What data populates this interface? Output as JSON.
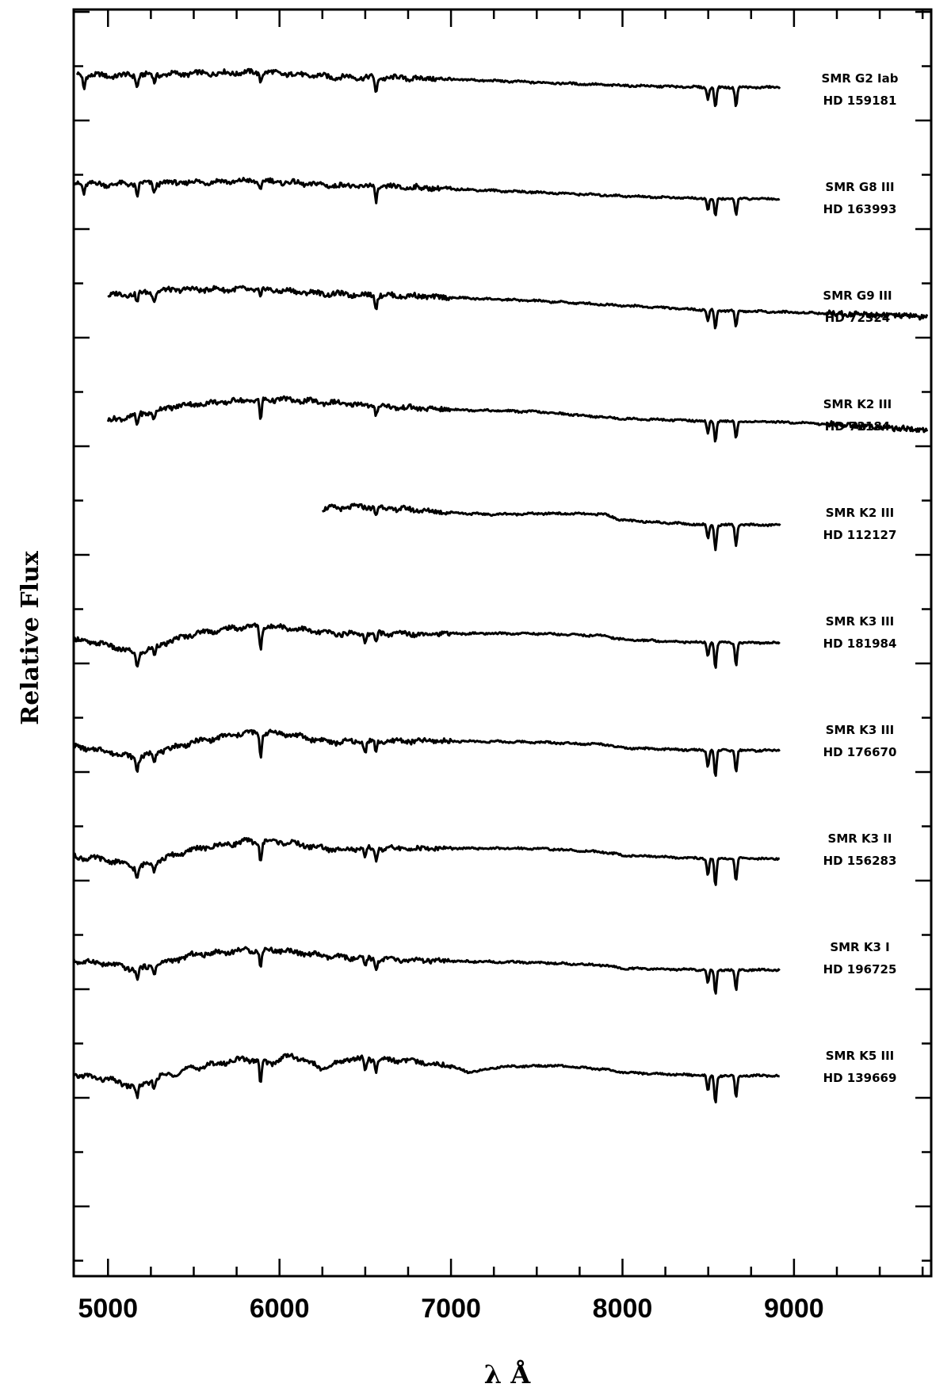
{
  "chart_data": {
    "type": "line",
    "xlabel": "λ Å",
    "ylabel": "Relative Flux",
    "xlim": [
      4800,
      9800
    ],
    "x_ticks": [
      5000,
      6000,
      7000,
      8000,
      9000
    ],
    "grid": false,
    "series": [
      {
        "name": "SMR G2 Iab",
        "name2": "HD 159181",
        "x_range": [
          4820,
          8920
        ],
        "offset": 9,
        "continuum": [
          [
            4820,
            1.0
          ],
          [
            5000,
            0.97
          ],
          [
            5200,
            0.99
          ],
          [
            5500,
            1.02
          ],
          [
            5900,
            1.05
          ],
          [
            6300,
            0.95
          ],
          [
            6800,
            0.92
          ],
          [
            7500,
            0.83
          ],
          [
            8000,
            0.76
          ],
          [
            8500,
            0.72
          ],
          [
            8920,
            0.72
          ]
        ],
        "lines": [
          [
            4860,
            0.3
          ],
          [
            5170,
            0.25
          ],
          [
            5270,
            0.18
          ],
          [
            5890,
            0.18
          ],
          [
            6563,
            0.38
          ],
          [
            8498,
            0.25
          ],
          [
            8542,
            0.45
          ],
          [
            8662,
            0.4
          ]
        ]
      },
      {
        "name": "SMR G8 III",
        "name2": "HD 163993",
        "x_range": [
          4800,
          8920
        ],
        "offset": 8,
        "continuum": [
          [
            4800,
            1.0
          ],
          [
            5000,
            0.97
          ],
          [
            5200,
            0.99
          ],
          [
            5500,
            1.02
          ],
          [
            5900,
            1.05
          ],
          [
            6300,
            0.95
          ],
          [
            6800,
            0.9
          ],
          [
            7500,
            0.8
          ],
          [
            8000,
            0.72
          ],
          [
            8500,
            0.66
          ],
          [
            8920,
            0.66
          ]
        ],
        "lines": [
          [
            4860,
            0.2
          ],
          [
            5170,
            0.28
          ],
          [
            5270,
            0.2
          ],
          [
            5890,
            0.22
          ],
          [
            6563,
            0.3
          ],
          [
            8498,
            0.25
          ],
          [
            8542,
            0.4
          ],
          [
            8662,
            0.35
          ]
        ]
      },
      {
        "name": "SMR G9 III",
        "name2": "HD 72324",
        "x_range": [
          5000,
          9780
        ],
        "offset": 7,
        "continuum": [
          [
            5000,
            0.92
          ],
          [
            5200,
            0.97
          ],
          [
            5400,
            1.05
          ],
          [
            5900,
            1.05
          ],
          [
            6300,
            0.95
          ],
          [
            6800,
            0.9
          ],
          [
            7500,
            0.8
          ],
          [
            8000,
            0.7
          ],
          [
            8500,
            0.6
          ],
          [
            9000,
            0.55
          ],
          [
            9500,
            0.5
          ],
          [
            9780,
            0.45
          ]
        ],
        "lines": [
          [
            5170,
            0.22
          ],
          [
            5270,
            0.18
          ],
          [
            5890,
            0.2
          ],
          [
            6563,
            0.25
          ],
          [
            8498,
            0.25
          ],
          [
            8542,
            0.4
          ],
          [
            8662,
            0.35
          ]
        ]
      },
      {
        "name": "SMR K2 III",
        "name2": "HD 72184",
        "x_range": [
          5000,
          9780
        ],
        "offset": 6,
        "continuum": [
          [
            5000,
            0.55
          ],
          [
            5200,
            0.7
          ],
          [
            5400,
            0.88
          ],
          [
            5800,
            1.0
          ],
          [
            6000,
            1.02
          ],
          [
            6400,
            0.92
          ],
          [
            6800,
            0.82
          ],
          [
            7500,
            0.75
          ],
          [
            8000,
            0.6
          ],
          [
            8500,
            0.55
          ],
          [
            9000,
            0.52
          ],
          [
            9500,
            0.42
          ],
          [
            9780,
            0.35
          ]
        ],
        "lines": [
          [
            5170,
            0.25
          ],
          [
            5270,
            0.18
          ],
          [
            5890,
            0.45
          ],
          [
            6563,
            0.18
          ],
          [
            8498,
            0.3
          ],
          [
            8542,
            0.45
          ],
          [
            8662,
            0.38
          ]
        ]
      },
      {
        "name": "SMR K2 III",
        "name2": "HD 112127",
        "x_range": [
          6250,
          8920
        ],
        "offset": 5,
        "continuum": [
          [
            6250,
            1.0
          ],
          [
            6500,
            1.05
          ],
          [
            7000,
            0.92
          ],
          [
            7200,
            0.88
          ],
          [
            7600,
            0.9
          ],
          [
            7900,
            0.88
          ],
          [
            8000,
            0.75
          ],
          [
            8500,
            0.65
          ],
          [
            8920,
            0.65
          ]
        ],
        "lines": [
          [
            6563,
            0.2
          ],
          [
            8498,
            0.3
          ],
          [
            8542,
            0.55
          ],
          [
            8662,
            0.45
          ]
        ]
      },
      {
        "name": "SMR K3 III",
        "name2": "HD 181984",
        "x_range": [
          4800,
          8920
        ],
        "offset": 4,
        "continuum": [
          [
            4800,
            0.52
          ],
          [
            5000,
            0.4
          ],
          [
            5170,
            0.2
          ],
          [
            5300,
            0.4
          ],
          [
            5500,
            0.65
          ],
          [
            5800,
            0.8
          ],
          [
            6000,
            0.8
          ],
          [
            6300,
            0.65
          ],
          [
            6800,
            0.65
          ],
          [
            7500,
            0.65
          ],
          [
            7900,
            0.6
          ],
          [
            8000,
            0.52
          ],
          [
            8500,
            0.45
          ],
          [
            8920,
            0.45
          ]
        ],
        "lines": [
          [
            5170,
            0.3
          ],
          [
            5270,
            0.2
          ],
          [
            5890,
            0.5
          ],
          [
            6500,
            0.2
          ],
          [
            6563,
            0.2
          ],
          [
            8498,
            0.3
          ],
          [
            8542,
            0.55
          ],
          [
            8662,
            0.48
          ]
        ]
      },
      {
        "name": "SMR K3 III",
        "name2": "HD 176670",
        "x_range": [
          4800,
          8920
        ],
        "offset": 3,
        "continuum": [
          [
            4800,
            0.55
          ],
          [
            5000,
            0.45
          ],
          [
            5170,
            0.3
          ],
          [
            5300,
            0.45
          ],
          [
            5500,
            0.65
          ],
          [
            5800,
            0.85
          ],
          [
            6000,
            0.85
          ],
          [
            6300,
            0.65
          ],
          [
            6800,
            0.68
          ],
          [
            7500,
            0.65
          ],
          [
            7900,
            0.6
          ],
          [
            8000,
            0.52
          ],
          [
            8500,
            0.47
          ],
          [
            8920,
            0.47
          ]
        ],
        "lines": [
          [
            5170,
            0.25
          ],
          [
            5270,
            0.18
          ],
          [
            5890,
            0.5
          ],
          [
            6500,
            0.22
          ],
          [
            6563,
            0.25
          ],
          [
            8498,
            0.35
          ],
          [
            8542,
            0.6
          ],
          [
            8662,
            0.48
          ]
        ]
      },
      {
        "name": "SMR K3 II",
        "name2": "HD 156283",
        "x_range": [
          4800,
          8920
        ],
        "offset": 2,
        "continuum": [
          [
            4800,
            0.52
          ],
          [
            5000,
            0.45
          ],
          [
            5170,
            0.28
          ],
          [
            5300,
            0.45
          ],
          [
            5500,
            0.68
          ],
          [
            5800,
            0.85
          ],
          [
            6000,
            0.85
          ],
          [
            6300,
            0.68
          ],
          [
            6800,
            0.7
          ],
          [
            7500,
            0.7
          ],
          [
            7900,
            0.62
          ],
          [
            8000,
            0.55
          ],
          [
            8500,
            0.48
          ],
          [
            8920,
            0.48
          ]
        ],
        "lines": [
          [
            5170,
            0.25
          ],
          [
            5270,
            0.18
          ],
          [
            5890,
            0.45
          ],
          [
            6500,
            0.2
          ],
          [
            6563,
            0.25
          ],
          [
            8498,
            0.35
          ],
          [
            8542,
            0.6
          ],
          [
            8662,
            0.5
          ]
        ]
      },
      {
        "name": "SMR K3 I",
        "name2": "HD 196725",
        "x_range": [
          4800,
          8920
        ],
        "offset": 1,
        "continuum": [
          [
            4800,
            0.62
          ],
          [
            5000,
            0.55
          ],
          [
            5170,
            0.42
          ],
          [
            5300,
            0.55
          ],
          [
            5500,
            0.75
          ],
          [
            5800,
            0.85
          ],
          [
            6000,
            0.85
          ],
          [
            6300,
            0.7
          ],
          [
            6800,
            0.62
          ],
          [
            7500,
            0.58
          ],
          [
            7900,
            0.52
          ],
          [
            8000,
            0.45
          ],
          [
            8500,
            0.42
          ],
          [
            8920,
            0.42
          ]
        ],
        "lines": [
          [
            5170,
            0.22
          ],
          [
            5270,
            0.15
          ],
          [
            5890,
            0.4
          ],
          [
            6500,
            0.22
          ],
          [
            6563,
            0.22
          ],
          [
            8498,
            0.3
          ],
          [
            8542,
            0.55
          ],
          [
            8662,
            0.45
          ]
        ]
      },
      {
        "name": "SMR K5 III",
        "name2": "HD 139669",
        "x_range": [
          4800,
          8920
        ],
        "offset": 0,
        "continuum": [
          [
            4800,
            0.5
          ],
          [
            5000,
            0.4
          ],
          [
            5170,
            0.22
          ],
          [
            5300,
            0.45
          ],
          [
            5500,
            0.65
          ],
          [
            5800,
            0.85
          ],
          [
            5950,
            0.75
          ],
          [
            6050,
            0.92
          ],
          [
            6150,
            0.82
          ],
          [
            6250,
            0.62
          ],
          [
            6400,
            0.85
          ],
          [
            6700,
            0.82
          ],
          [
            7000,
            0.7
          ],
          [
            7100,
            0.55
          ],
          [
            7300,
            0.68
          ],
          [
            7600,
            0.7
          ],
          [
            7900,
            0.62
          ],
          [
            8000,
            0.55
          ],
          [
            8500,
            0.48
          ],
          [
            8920,
            0.48
          ]
        ],
        "lines": [
          [
            5170,
            0.25
          ],
          [
            5270,
            0.18
          ],
          [
            5890,
            0.5
          ],
          [
            6500,
            0.25
          ],
          [
            6563,
            0.25
          ],
          [
            8498,
            0.35
          ],
          [
            8542,
            0.6
          ],
          [
            8662,
            0.5
          ]
        ]
      }
    ]
  }
}
